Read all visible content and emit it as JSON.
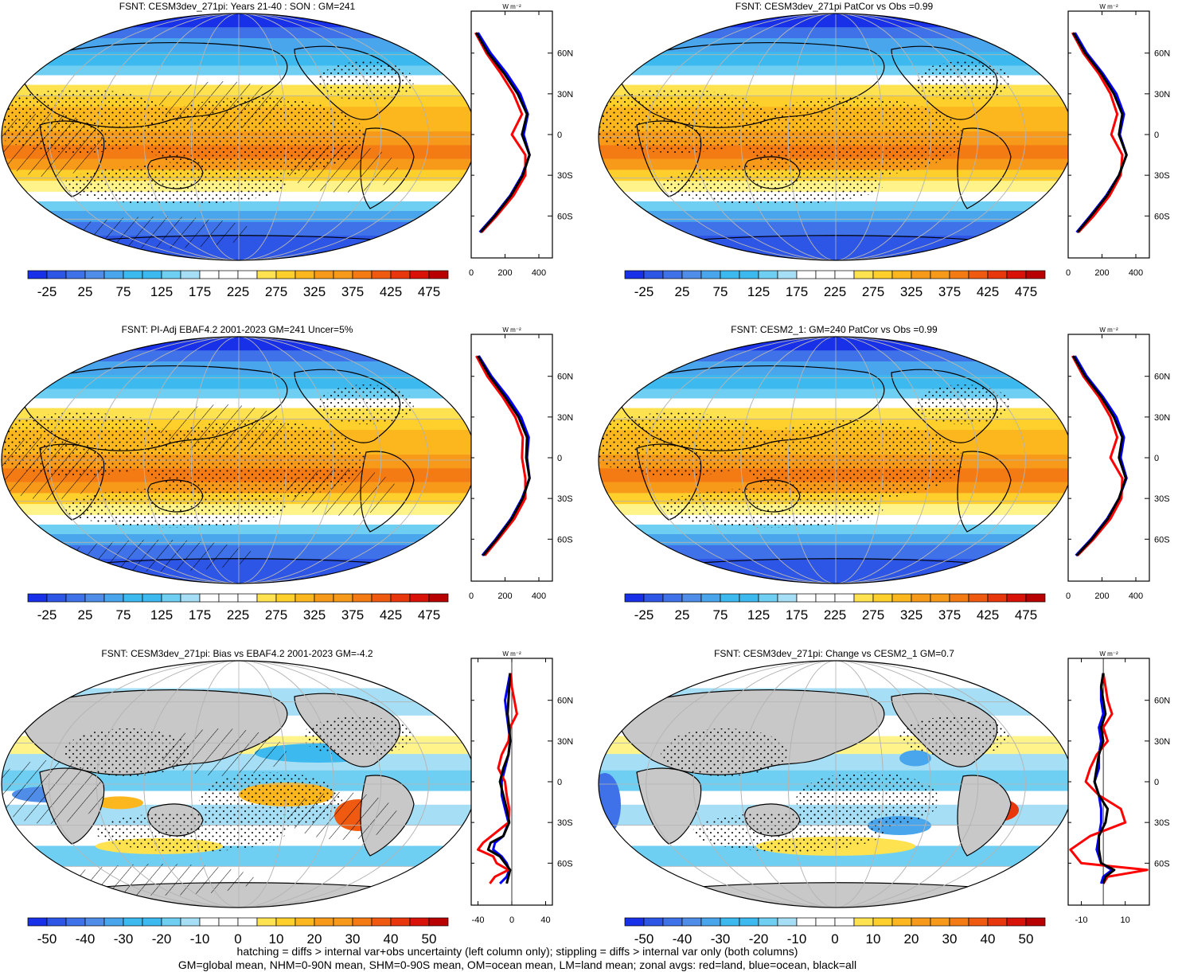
{
  "footer": {
    "line1": "hatching = diffs > internal var+obs uncertainty (left column only); stippling = diffs > internal var only (both columns)",
    "line2": "GM=global mean, NHM=0-90N mean, SHM=0-90S mean, OM=ocean mean, LM=land mean; zonal avgs: red=land, blue=ocean, black=all"
  },
  "colors": {
    "land": "#ff0000",
    "ocean": "#0000ff",
    "all": "#000000",
    "landmask": "#c8c8c8",
    "scale": [
      "#1730e8",
      "#2d55e6",
      "#3f72e8",
      "#4f8de8",
      "#4aa6ec",
      "#3cbaf0",
      "#6fcff2",
      "#a6dff5",
      "#ffffff",
      "#ffffff",
      "#fff38a",
      "#ffe24f",
      "#ffcf2b",
      "#fcb61e",
      "#f89a19",
      "#f47b13",
      "#ef5a10",
      "#e8360d",
      "#d81208",
      "#b80000"
    ]
  },
  "chart_data": [
    {
      "type": "heatmap",
      "id": "tl",
      "title": "FSNT: CESM3dev_271pi: Years 21-40 : SON : GM=241",
      "colorbar_ticks": [
        "-25",
        "25",
        "75",
        "125",
        "175",
        "225",
        "275",
        "325",
        "375",
        "425",
        "475"
      ],
      "colorbar_range": [
        -50,
        500
      ],
      "zonal": {
        "xlim": [
          0,
          480
        ],
        "xticks": [
          "0",
          "200",
          "400"
        ],
        "yticks": [
          "60N",
          "30N",
          "0",
          "30S",
          "60S"
        ],
        "unit": "W m⁻²",
        "lat": [
          75,
          60,
          45,
          30,
          15,
          0,
          -15,
          -30,
          -45,
          -60,
          -72
        ],
        "all": [
          30,
          100,
          195,
          275,
          330,
          300,
          345,
          305,
          235,
          140,
          55
        ],
        "ocean": [
          40,
          115,
          210,
          290,
          335,
          310,
          345,
          300,
          230,
          135,
          50
        ],
        "land": [
          25,
          90,
          175,
          250,
          300,
          240,
          320,
          320,
          250,
          150,
          60
        ]
      }
    },
    {
      "type": "heatmap",
      "id": "tr",
      "title": "FSNT: CESM3dev_271pi PatCor vs Obs =0.99",
      "colorbar_ticks": [
        "-25",
        "25",
        "75",
        "125",
        "175",
        "225",
        "275",
        "325",
        "375",
        "425",
        "475"
      ],
      "colorbar_range": [
        -50,
        500
      ],
      "zonal": {
        "xlim": [
          0,
          480
        ],
        "xticks": [
          "0",
          "200",
          "400"
        ],
        "yticks": [
          "60N",
          "30N",
          "0",
          "30S",
          "60S"
        ],
        "unit": "W m⁻²",
        "lat": [
          75,
          60,
          45,
          30,
          15,
          0,
          -15,
          -30,
          -45,
          -60,
          -72
        ],
        "all": [
          30,
          100,
          195,
          270,
          320,
          300,
          345,
          300,
          230,
          135,
          55
        ],
        "ocean": [
          40,
          110,
          205,
          285,
          330,
          305,
          345,
          300,
          225,
          130,
          50
        ],
        "land": [
          25,
          90,
          180,
          250,
          290,
          255,
          320,
          310,
          245,
          150,
          60
        ]
      }
    },
    {
      "type": "heatmap",
      "id": "ml",
      "title": "FSNT: PI-Adj EBAF4.2 2001-2023 GM=241 Uncer=5%",
      "colorbar_ticks": [
        "-25",
        "25",
        "75",
        "125",
        "175",
        "225",
        "275",
        "325",
        "375",
        "425",
        "475"
      ],
      "colorbar_range": [
        -50,
        500
      ],
      "zonal": {
        "xlim": [
          0,
          480
        ],
        "xticks": [
          "0",
          "200",
          "400"
        ],
        "yticks": [
          "60N",
          "30N",
          "0",
          "30S",
          "60S"
        ],
        "unit": "W m⁻²",
        "lat": [
          75,
          60,
          45,
          30,
          15,
          0,
          -15,
          -30,
          -45,
          -60,
          -72
        ],
        "all": [
          40,
          110,
          200,
          280,
          330,
          325,
          345,
          305,
          240,
          150,
          70
        ],
        "ocean": [
          45,
          120,
          215,
          295,
          340,
          330,
          345,
          300,
          235,
          145,
          65
        ],
        "land": [
          30,
          95,
          185,
          260,
          305,
          300,
          320,
          320,
          255,
          160,
          80
        ]
      }
    },
    {
      "type": "heatmap",
      "id": "mr",
      "title": "FSNT: CESM2_1: GM=240 PatCor vs Obs =0.99",
      "colorbar_ticks": [
        "-25",
        "25",
        "75",
        "125",
        "175",
        "225",
        "275",
        "325",
        "375",
        "425",
        "475"
      ],
      "colorbar_range": [
        -50,
        500
      ],
      "zonal": {
        "xlim": [
          0,
          480
        ],
        "xticks": [
          "0",
          "200",
          "400"
        ],
        "yticks": [
          "60N",
          "30N",
          "0",
          "30S",
          "60S"
        ],
        "unit": "W m⁻²",
        "lat": [
          75,
          60,
          45,
          30,
          15,
          0,
          -15,
          -30,
          -45,
          -60,
          -72
        ],
        "all": [
          30,
          100,
          195,
          270,
          320,
          300,
          340,
          300,
          235,
          140,
          50
        ],
        "ocean": [
          40,
          110,
          205,
          285,
          330,
          310,
          345,
          300,
          230,
          135,
          45
        ],
        "land": [
          25,
          90,
          180,
          250,
          290,
          250,
          320,
          315,
          250,
          150,
          55
        ]
      }
    },
    {
      "type": "heatmap",
      "id": "bl",
      "title": "FSNT: CESM3dev_271pi: Bias vs EBAF4.2 2001-2023  GM=-4.2",
      "colorbar_ticks": [
        "-50",
        "-40",
        "-30",
        "-20",
        "-10",
        "0",
        "10",
        "20",
        "30",
        "40",
        "50"
      ],
      "colorbar_range": [
        -55,
        55
      ],
      "zonal": {
        "xlim": [
          -48,
          48
        ],
        "xticks": [
          "-40",
          "0",
          "40"
        ],
        "yticks": [
          "60N",
          "30N",
          "0",
          "30S",
          "60S"
        ],
        "unit": "W m⁻²",
        "lat": [
          80,
          70,
          60,
          50,
          40,
          30,
          20,
          10,
          0,
          -10,
          -20,
          -30,
          -40,
          -45,
          -50,
          -55,
          -60,
          -65,
          -70,
          -75
        ],
        "all": [
          -2,
          -3,
          -4,
          -5,
          -3,
          -2,
          -4,
          -10,
          -14,
          -10,
          -6,
          -3,
          -10,
          -25,
          -28,
          -14,
          -8,
          -2,
          -4,
          -6
        ],
        "ocean": [
          -2,
          -5,
          -8,
          -6,
          -4,
          -2,
          -4,
          -8,
          -12,
          -12,
          -8,
          -4,
          -10,
          -20,
          -22,
          -12,
          -6,
          -3,
          -6,
          -14
        ],
        "land": [
          -1,
          0,
          3,
          6,
          -2,
          -4,
          -12,
          -16,
          -8,
          -6,
          -3,
          -4,
          -24,
          -34,
          -40,
          -22,
          -18,
          -4,
          -20,
          -26
        ]
      }
    },
    {
      "type": "heatmap",
      "id": "br",
      "title": "FSNT: CESM3dev_271pi: Change vs CESM2_1 GM=0.7",
      "colorbar_ticks": [
        "-50",
        "-40",
        "-30",
        "-20",
        "-10",
        "0",
        "10",
        "20",
        "30",
        "40",
        "50"
      ],
      "colorbar_range": [
        -55,
        55
      ],
      "zonal": {
        "xlim": [
          -16,
          21
        ],
        "xticks": [
          "-10",
          "10"
        ],
        "yticks": [
          "60N",
          "30N",
          "0",
          "30S",
          "60S"
        ],
        "unit": "W m⁻²",
        "lat": [
          80,
          70,
          60,
          50,
          40,
          30,
          20,
          10,
          0,
          -10,
          -20,
          -30,
          -40,
          -50,
          -60,
          -65,
          -70,
          -75
        ],
        "all": [
          0,
          -1,
          0,
          1,
          -1,
          0,
          -2,
          -3,
          -4,
          -2,
          2,
          1,
          -2,
          -2,
          -1,
          5,
          1,
          0
        ],
        "ocean": [
          0,
          -1,
          -1,
          0,
          -2,
          -1,
          -2,
          -2,
          -4,
          -2,
          -1,
          -1,
          -2,
          -3,
          -1,
          4,
          0,
          -1
        ],
        "land": [
          0,
          1,
          2,
          4,
          0,
          2,
          -3,
          -6,
          -8,
          -2,
          8,
          10,
          -6,
          -15,
          -10,
          20,
          2,
          0
        ]
      }
    }
  ]
}
